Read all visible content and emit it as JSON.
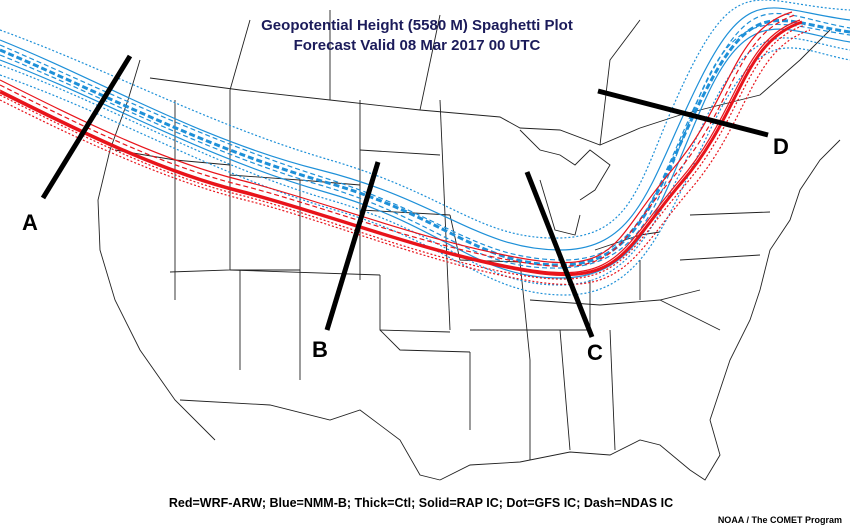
{
  "title_line1": "Geopotential Height (5580 M) Spaghetti Plot",
  "title_line2": "Forecast Valid 08 Mar 2017 00 UTC",
  "legend": "Red=WRF-ARW; Blue=NMM-B; Thick=Ctl; Solid=RAP IC; Dot=GFS IC; Dash=NDAS IC",
  "credit": "NOAA / The COMET Program",
  "cross_sections": [
    {
      "label": "A"
    },
    {
      "label": "B"
    },
    {
      "label": "C"
    },
    {
      "label": "D"
    }
  ],
  "colors": {
    "wrf_arw": "#e8141b",
    "nmm_b": "#1e90d8",
    "map_lines": "#222222",
    "section_lines": "#000000"
  }
}
